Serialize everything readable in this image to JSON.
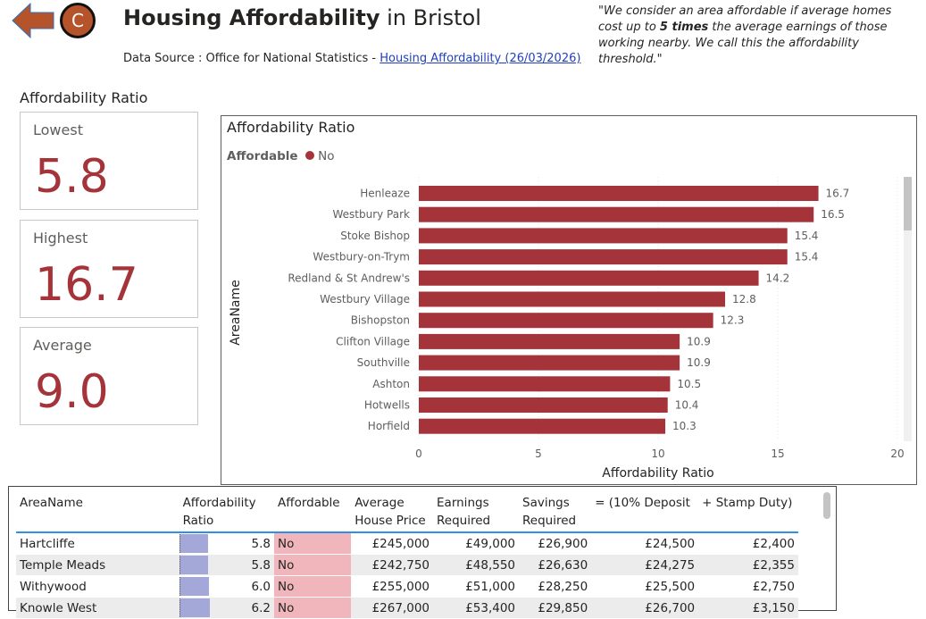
{
  "header": {
    "title_bold": "Housing Affordability",
    "title_rest": " in Bristol",
    "source_prefix": "Data Source : Office for National Statistics - ",
    "source_link": "Housing Affordability (26/03/2026)",
    "logo_letter": "C",
    "quote_1": "\"We consider an area affordable if average homes cost up to ",
    "quote_bold": "5 times",
    "quote_2": " the average earnings of those working nearby. We call this the affordability threshold.\""
  },
  "colors": {
    "accent": "#a4343a",
    "back_arrow": "#b5542a",
    "bar": "#a3a8d8",
    "no_cell": "#f0b6bb"
  },
  "kpi": {
    "section": "Affordability Ratio",
    "cards": [
      {
        "label": "Lowest",
        "value": "5.8"
      },
      {
        "label": "Highest",
        "value": "16.7"
      },
      {
        "label": "Average",
        "value": "9.0"
      }
    ]
  },
  "chart_data": {
    "type": "bar",
    "orientation": "horizontal",
    "title": "Affordability Ratio",
    "legend_title": "Affordable",
    "legend": [
      {
        "name": "No",
        "color": "#a4343a"
      }
    ],
    "xlabel": "Affordability Ratio",
    "ylabel": "AreaName",
    "xlim": [
      0,
      20
    ],
    "xticks": [
      0,
      5,
      10,
      15,
      20
    ],
    "categories": [
      "Henleaze",
      "Westbury Park",
      "Stoke Bishop",
      "Westbury-on-Trym",
      "Redland & St Andrew's",
      "Westbury Village",
      "Bishopston",
      "Clifton Village",
      "Southville",
      "Ashton",
      "Hotwells",
      "Horfield"
    ],
    "values": [
      16.7,
      16.5,
      15.4,
      15.4,
      14.2,
      12.8,
      12.3,
      10.9,
      10.9,
      10.5,
      10.4,
      10.3
    ]
  },
  "table": {
    "headers": [
      "AreaName",
      "Affordability Ratio",
      "Affordable",
      "Average House Price",
      "Earnings Required",
      "Savings Required",
      "= (10% Deposit",
      "+ Stamp Duty)"
    ],
    "rows": [
      [
        "Hartcliffe",
        "5.8",
        "No",
        "£245,000",
        "£49,000",
        "£26,900",
        "£24,500",
        "£2,400"
      ],
      [
        "Temple Meads",
        "5.8",
        "No",
        "£242,750",
        "£48,550",
        "£26,630",
        "£24,275",
        "£2,355"
      ],
      [
        "Withywood",
        "6.0",
        "No",
        "£255,000",
        "£51,000",
        "£28,250",
        "£25,500",
        "£2,750"
      ],
      [
        "Knowle West",
        "6.2",
        "No",
        "£267,000",
        "£53,400",
        "£29,850",
        "£26,700",
        "£3,150"
      ]
    ]
  }
}
